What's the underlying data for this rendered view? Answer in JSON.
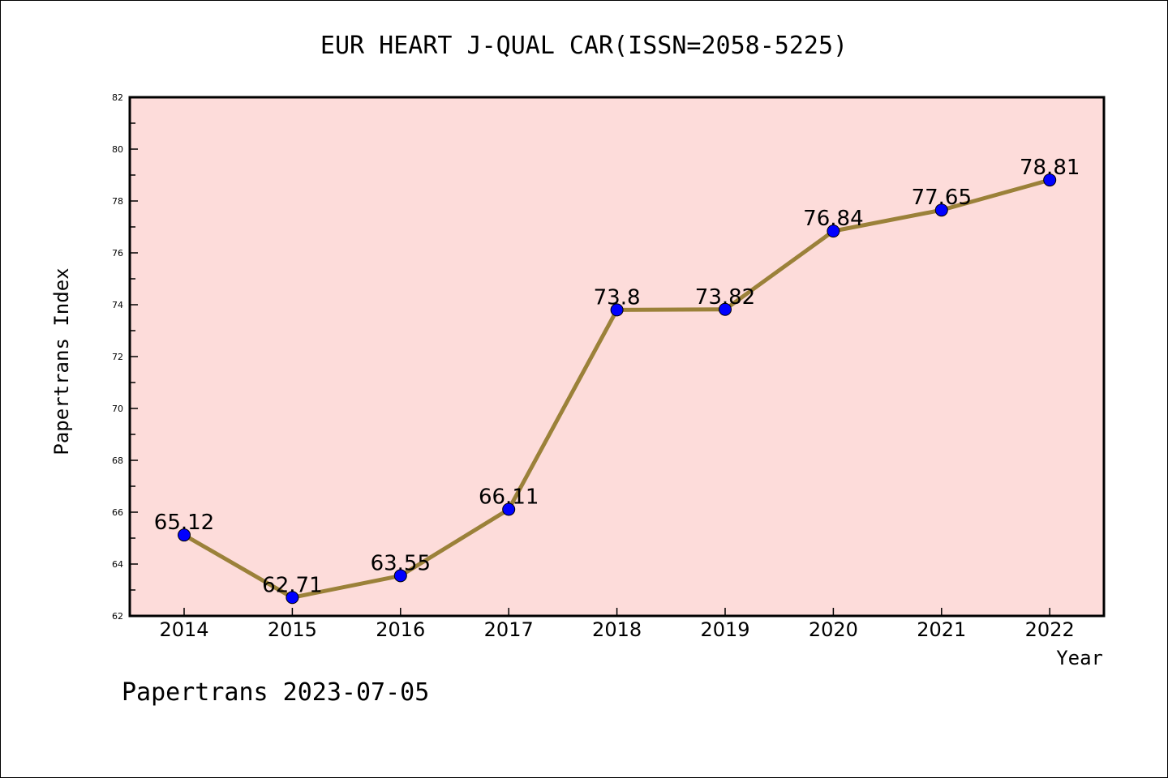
{
  "chart_data": {
    "type": "line",
    "title": "EUR HEART J-QUAL CAR(ISSN=2058-5225)",
    "xlabel": "Year",
    "ylabel": "Papertrans Index",
    "categories": [
      "2014",
      "2015",
      "2016",
      "2017",
      "2018",
      "2019",
      "2020",
      "2021",
      "2022"
    ],
    "series": [
      {
        "values": [
          65.12,
          62.71,
          63.55,
          66.11,
          73.8,
          73.82,
          76.84,
          77.65,
          78.81
        ],
        "labels": [
          "65.12",
          "62.71",
          "63.55",
          "66.11",
          "73.8",
          "73.82",
          "76.84",
          "77.65",
          "78.81"
        ]
      }
    ],
    "ylim": [
      62,
      82
    ],
    "yticks": [
      62,
      64,
      66,
      68,
      70,
      72,
      74,
      76,
      78,
      80,
      82
    ],
    "grid": false,
    "colors": {
      "plot_background": "#fddcda",
      "line": "#9b8139",
      "marker": "#0000ff"
    }
  },
  "footer": {
    "text": "Papertrans 2023-07-05"
  }
}
